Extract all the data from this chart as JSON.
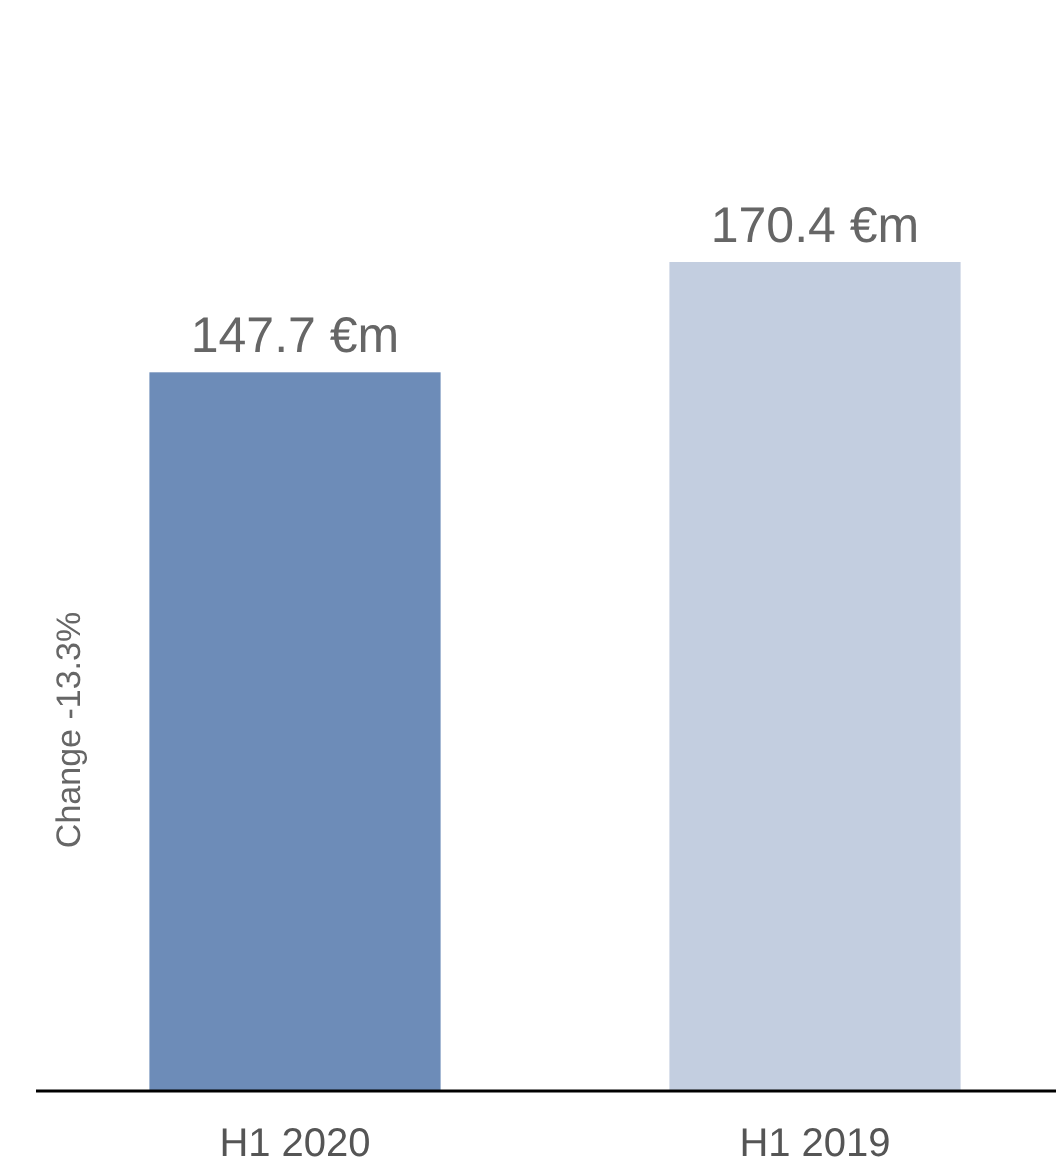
{
  "chart_data": {
    "type": "bar",
    "ylabel": "Change -13.3%",
    "categories": [
      "H1 2020",
      "H1 2019"
    ],
    "values": [
      147.7,
      170.4
    ],
    "colors": [
      "#6d8cb8",
      "#c3cee0"
    ],
    "value_labels": [
      "147.7 €m",
      "170.4 €m"
    ]
  }
}
